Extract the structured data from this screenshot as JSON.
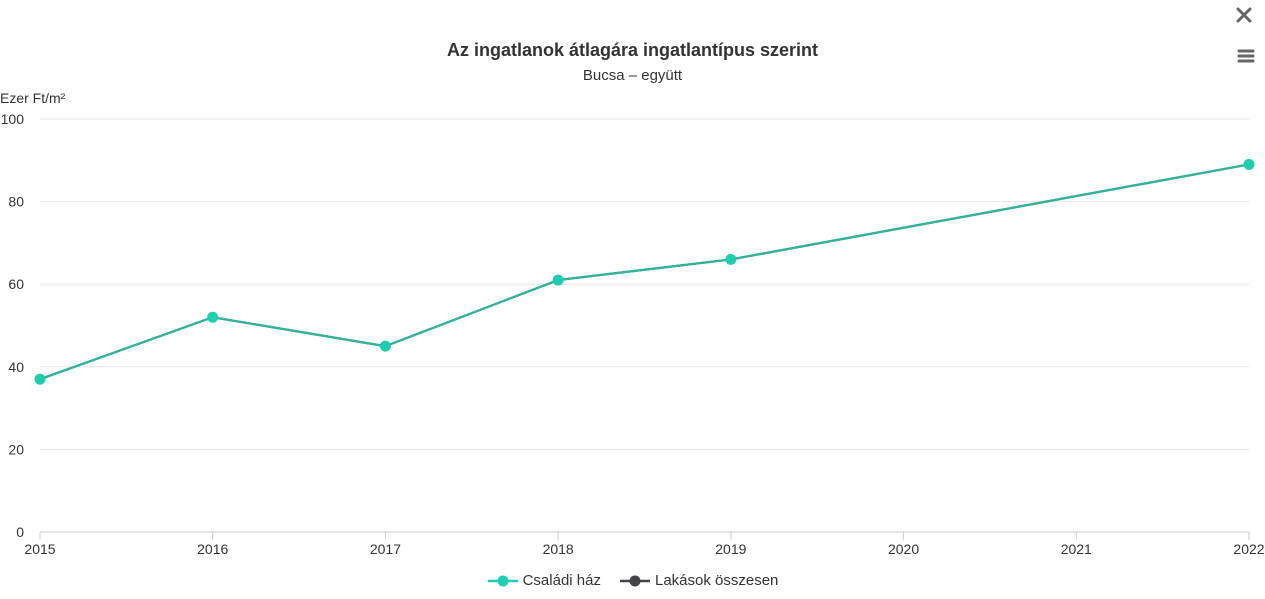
{
  "header": {
    "close_icon": "close-icon",
    "menu_icon": "hamburger-menu-icon"
  },
  "chart_data": {
    "type": "line",
    "title": "Az ingatlanok átlagára ingatlantípus szerint",
    "subtitle": "Bucsa – együtt",
    "ylabel": "Ezer Ft/m²",
    "xlabel": "",
    "x": [
      "2015",
      "2016",
      "2017",
      "2018",
      "2019",
      "2020",
      "2021",
      "2022"
    ],
    "yticks": [
      "0",
      "20",
      "40",
      "60",
      "80",
      "100"
    ],
    "ylim": [
      0,
      100
    ],
    "grid": true,
    "legend_position": "bottom-center",
    "series": [
      {
        "name": "Családi ház",
        "color": "#1fcdb0",
        "values": [
          37,
          52,
          45,
          61,
          66,
          null,
          null,
          89
        ]
      },
      {
        "name": "Lakások összesen",
        "color": "#434348",
        "values": [
          37,
          52,
          45,
          61,
          66,
          null,
          null,
          89
        ]
      }
    ]
  }
}
